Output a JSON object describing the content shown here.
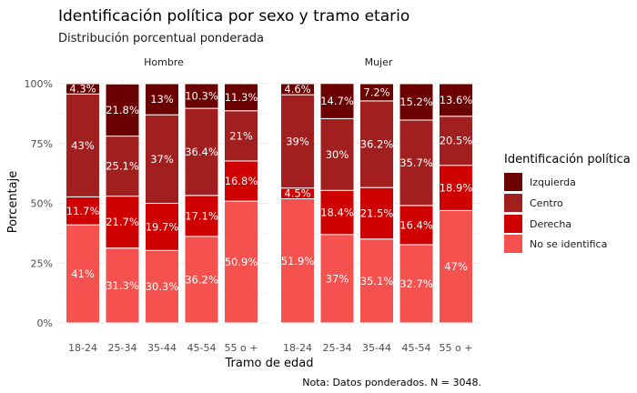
{
  "chart_data": {
    "type": "bar",
    "stacked": true,
    "title": "Identificación política por sexo y tramo etario",
    "subtitle": "Distribución porcentual ponderada",
    "xlabel": "Tramo de edad",
    "ylabel": "Porcentaje",
    "caption": "Nota: Datos ponderados. N = 3048.",
    "y_ticks": [
      "0%",
      "25%",
      "50%",
      "75%",
      "100%"
    ],
    "ylim": [
      0,
      100
    ],
    "grid": true,
    "legend": {
      "title": "Identificación política",
      "placement": "right",
      "entries": [
        "Izquierda",
        "Centro",
        "Derecha",
        "No se identifica"
      ]
    },
    "colors": {
      "Izquierda": "#6b0000",
      "Centro": "#a11f1f",
      "Derecha": "#cf0000",
      "No se identifica": "#f5524f"
    },
    "categories": [
      "18-24",
      "25-34",
      "35-44",
      "45-54",
      "55 o +"
    ],
    "facets": [
      {
        "name": "Hombre",
        "series": [
          {
            "name": "No se identifica",
            "values": [
              41,
              31.3,
              30.3,
              36.2,
              50.9
            ],
            "labels": [
              "41%",
              "31.3%",
              "30.3%",
              "36.2%",
              "50.9%"
            ]
          },
          {
            "name": "Derecha",
            "values": [
              11.7,
              21.7,
              19.7,
              17.1,
              16.8
            ],
            "labels": [
              "11.7%",
              "21.7%",
              "19.7%",
              "17.1%",
              "16.8%"
            ]
          },
          {
            "name": "Centro",
            "values": [
              43,
              25.1,
              37,
              36.4,
              21
            ],
            "labels": [
              "43%",
              "25.1%",
              "37%",
              "36.4%",
              "21%"
            ]
          },
          {
            "name": "Izquierda",
            "values": [
              4.3,
              21.8,
              13,
              10.3,
              11.3
            ],
            "labels": [
              "4.3%",
              "21.8%",
              "13%",
              "10.3%",
              "11.3%"
            ]
          }
        ]
      },
      {
        "name": "Mujer",
        "series": [
          {
            "name": "No se identifica",
            "values": [
              51.9,
              37,
              35.1,
              32.7,
              47
            ],
            "labels": [
              "51.9%",
              "37%",
              "35.1%",
              "32.7%",
              "47%"
            ]
          },
          {
            "name": "Derecha",
            "values": [
              4.5,
              18.4,
              21.5,
              16.4,
              18.9
            ],
            "labels": [
              "4.5%",
              "18.4%",
              "21.5%",
              "16.4%",
              "18.9%"
            ]
          },
          {
            "name": "Centro",
            "values": [
              39,
              30,
              36.2,
              35.7,
              20.5
            ],
            "labels": [
              "39%",
              "30%",
              "36.2%",
              "35.7%",
              "20.5%"
            ]
          },
          {
            "name": "Izquierda",
            "values": [
              4.6,
              14.7,
              7.2,
              15.2,
              13.6
            ],
            "labels": [
              "4.6%",
              "14.7%",
              "7.2%",
              "15.2%",
              "13.6%"
            ]
          }
        ]
      }
    ]
  }
}
